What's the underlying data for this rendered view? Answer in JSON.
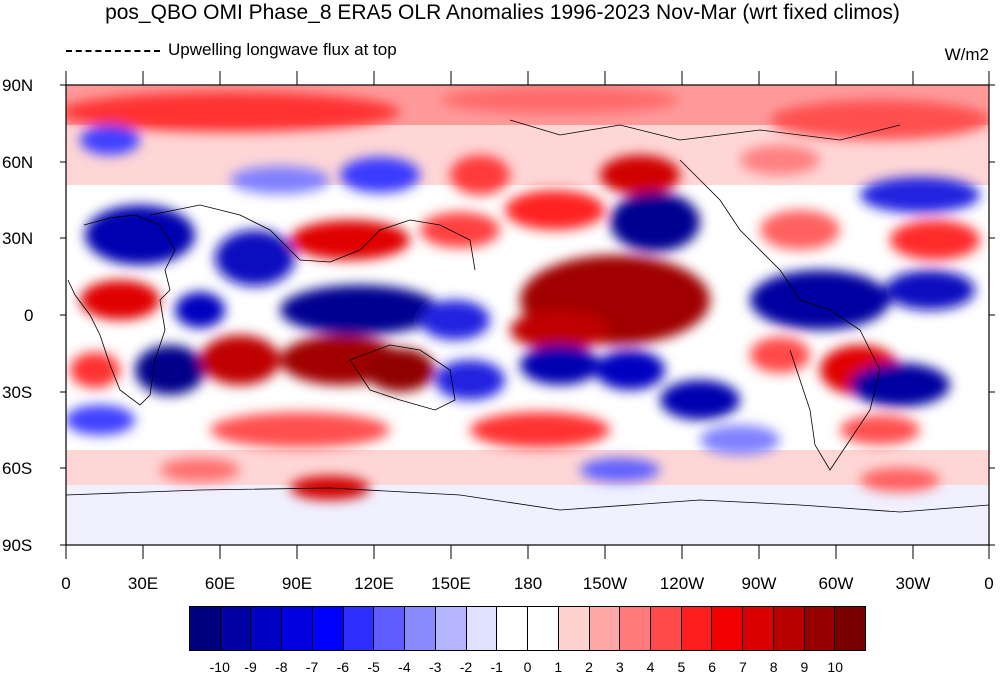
{
  "title": "pos_QBO OMI Phase_8 ERA5 OLR Anomalies 1996-2023 Nov-Mar (wrt fixed climos)",
  "subtitle": "Upwelling longwave flux at top",
  "units": "W/m2",
  "lat_labels": [
    "90N",
    "60N",
    "30N",
    "0",
    "30S",
    "60S",
    "90S"
  ],
  "lon_labels": [
    "0",
    "30E",
    "60E",
    "90E",
    "120E",
    "150E",
    "180",
    "150W",
    "120W",
    "90W",
    "60W",
    "30W",
    "0"
  ],
  "colorbar": {
    "labels": [
      "-10",
      "-9",
      "-8",
      "-7",
      "-6",
      "-5",
      "-4",
      "-3",
      "-2",
      "-1",
      "0",
      "1",
      "2",
      "3",
      "4",
      "5",
      "6",
      "7",
      "8",
      "9",
      "10"
    ],
    "colors": [
      "#00007f",
      "#0000a3",
      "#0000c4",
      "#0000e0",
      "#0000ff",
      "#2e2eff",
      "#5c5cff",
      "#8a8aff",
      "#b4b4ff",
      "#e0e0ff",
      "#ffffff",
      "#ffffff",
      "#ffd2d2",
      "#ffa6a6",
      "#ff7a7a",
      "#ff4a4a",
      "#ff1e1e",
      "#f00000",
      "#d80000",
      "#b80000",
      "#980000",
      "#7a0000"
    ]
  }
}
